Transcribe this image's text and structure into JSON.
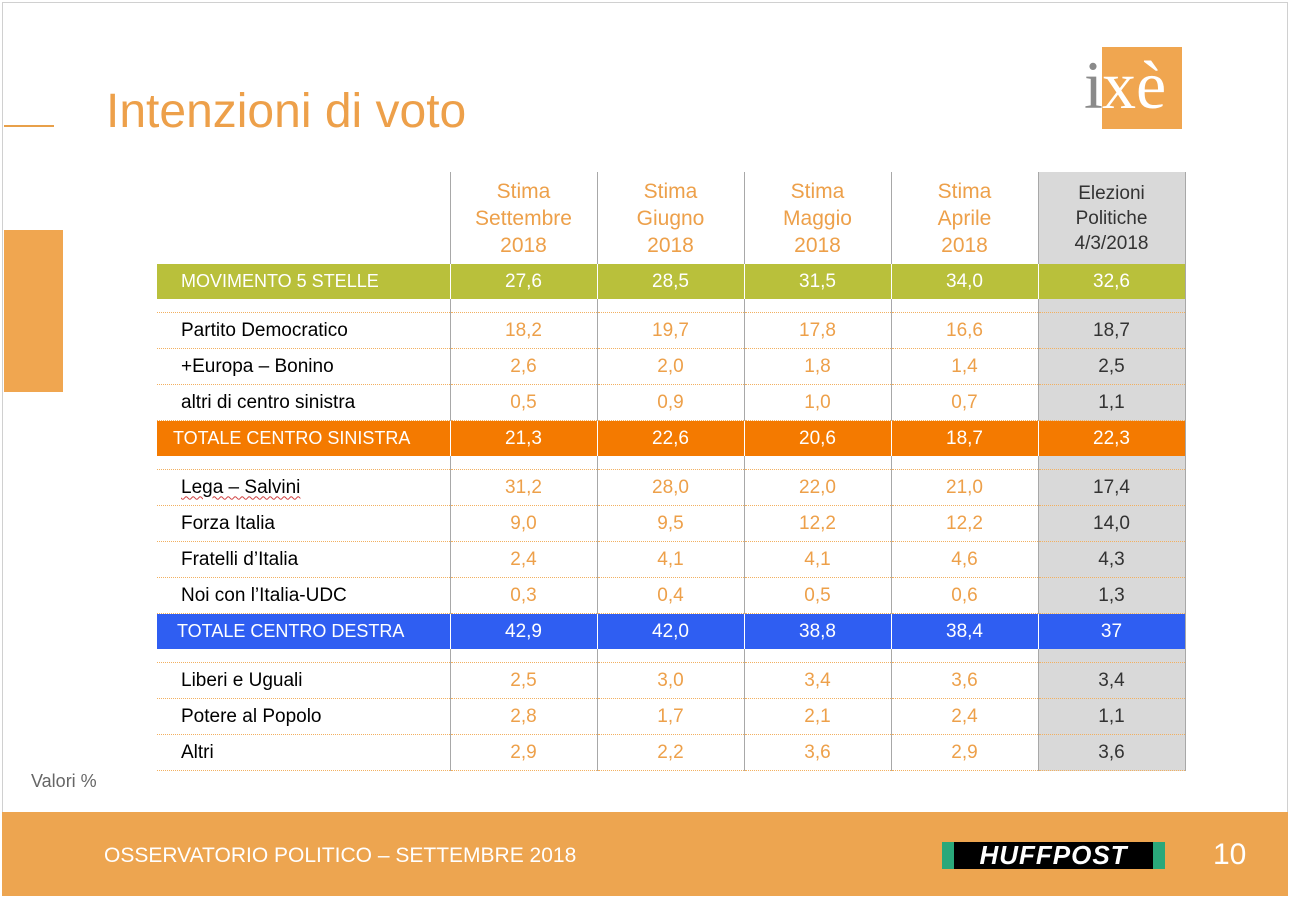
{
  "slide": {
    "title": "Intenzioni di voto",
    "logo_text_i": "i",
    "logo_text_xe": "xè",
    "note": "Valori %",
    "footer": "OSSERVATORIO POLITICO – SETTEMBRE 2018",
    "brand": "HUFFPOST",
    "page_number": "10",
    "colors": {
      "accent": "#eda04a",
      "m5s": "#b9c03b",
      "centro_sinistra": "#f47a00",
      "centro_destra": "#2f5ef2",
      "elezioni_bg": "#d9d9d9"
    }
  },
  "table": {
    "headers": [
      [
        "Stima",
        "Settembre",
        "2018"
      ],
      [
        "Stima",
        "Giugno",
        "2018"
      ],
      [
        "Stima",
        "Maggio",
        "2018"
      ],
      [
        "Stima",
        "Aprile",
        "2018"
      ],
      [
        "Elezioni",
        "Politiche",
        "4/3/2018"
      ]
    ],
    "m5s": {
      "label": "MOVIMENTO 5 STELLE",
      "values": [
        "27,6",
        "28,5",
        "31,5",
        "34,0",
        "32,6"
      ]
    },
    "cs_rows": [
      {
        "label": "Partito Democratico",
        "values": [
          "18,2",
          "19,7",
          "17,8",
          "16,6",
          "18,7"
        ]
      },
      {
        "label": "+Europa – Bonino",
        "values": [
          "2,6",
          "2,0",
          "1,8",
          "1,4",
          "2,5"
        ]
      },
      {
        "label": "altri di centro sinistra",
        "values": [
          "0,5",
          "0,9",
          "1,0",
          "0,7",
          "1,1"
        ]
      }
    ],
    "cs_total": {
      "label": "TOTALE CENTRO SINISTRA",
      "values": [
        "21,3",
        "22,6",
        "20,6",
        "18,7",
        "22,3"
      ]
    },
    "cd_rows": [
      {
        "label": "Lega – Salvini",
        "values": [
          "31,2",
          "28,0",
          "22,0",
          "21,0",
          "17,4"
        ]
      },
      {
        "label": "Forza Italia",
        "values": [
          "9,0",
          "9,5",
          "12,2",
          "12,2",
          "14,0"
        ]
      },
      {
        "label": "Fratelli d’Italia",
        "values": [
          "2,4",
          "4,1",
          "4,1",
          "4,6",
          "4,3"
        ]
      },
      {
        "label": "Noi con l’Italia-UDC",
        "values": [
          "0,3",
          "0,4",
          "0,5",
          "0,6",
          "1,3"
        ]
      }
    ],
    "cd_total": {
      "label": "TOTALE CENTRO DESTRA",
      "values": [
        "42,9",
        "42,0",
        "38,8",
        "38,4",
        "37"
      ]
    },
    "other_rows": [
      {
        "label": "Liberi e Uguali",
        "values": [
          "2,5",
          "3,0",
          "3,4",
          "3,6",
          "3,4"
        ]
      },
      {
        "label": "Potere al Popolo",
        "values": [
          "2,8",
          "1,7",
          "2,1",
          "2,4",
          "1,1"
        ]
      },
      {
        "label": "Altri",
        "values": [
          "2,9",
          "2,2",
          "3,6",
          "2,9",
          "3,6"
        ]
      }
    ]
  }
}
